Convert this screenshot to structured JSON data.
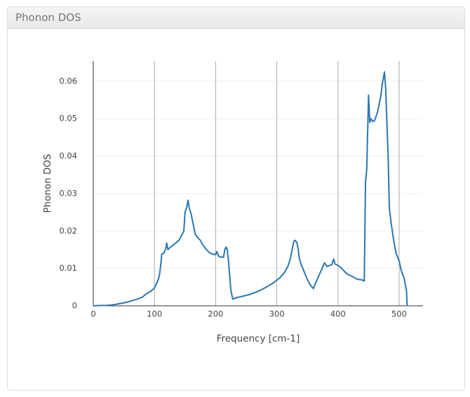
{
  "panel": {
    "title": "Phonon DOS"
  },
  "chart_data": {
    "type": "line",
    "x_label": "Frequency [cm-1]",
    "y_label": "Phonon DOS",
    "xlim": [
      0,
      539
    ],
    "ylim": [
      0,
      0.0654
    ],
    "xticks": [
      0,
      100,
      200,
      300,
      400,
      500
    ],
    "yticks": [
      0,
      0.01,
      0.02,
      0.03,
      0.04,
      0.05,
      0.06
    ],
    "grid": true,
    "series": [
      {
        "color": "#2a77b0",
        "x": [
          0,
          10,
          20,
          30,
          40,
          50,
          60,
          70,
          80,
          85,
          90,
          95,
          100,
          105,
          108,
          110,
          112,
          115,
          118,
          120,
          122,
          125,
          130,
          135,
          140,
          145,
          148,
          150,
          153,
          155,
          157,
          160,
          163,
          167,
          172,
          175,
          178,
          185,
          190,
          195,
          200,
          202,
          205,
          210,
          213,
          215,
          217,
          219,
          221,
          223,
          225,
          228,
          235,
          245,
          255,
          265,
          275,
          285,
          295,
          305,
          312,
          318,
          322,
          325,
          328,
          330,
          333,
          335,
          337,
          340,
          345,
          350,
          355,
          360,
          363,
          366,
          370,
          374,
          378,
          382,
          387,
          390,
          393,
          395,
          400,
          405,
          410,
          415,
          420,
          425,
          430,
          435,
          440,
          443,
          445,
          447,
          450,
          452,
          454,
          457,
          460,
          465,
          470,
          473,
          476,
          478,
          482,
          484,
          487,
          492,
          495,
          500,
          503,
          506,
          508,
          510,
          512,
          513
        ],
        "values": [
          0,
          0.0001,
          0.0001,
          0.0002,
          0.0005,
          0.0008,
          0.0012,
          0.0017,
          0.0023,
          0.003,
          0.0035,
          0.004,
          0.0048,
          0.0065,
          0.008,
          0.0105,
          0.0138,
          0.014,
          0.015,
          0.0168,
          0.015,
          0.0155,
          0.0162,
          0.0168,
          0.0175,
          0.019,
          0.02,
          0.025,
          0.0265,
          0.0282,
          0.026,
          0.0245,
          0.022,
          0.019,
          0.018,
          0.0175,
          0.0165,
          0.015,
          0.0142,
          0.0138,
          0.0137,
          0.0145,
          0.0132,
          0.013,
          0.013,
          0.015,
          0.0157,
          0.015,
          0.012,
          0.008,
          0.004,
          0.0018,
          0.0022,
          0.0026,
          0.003,
          0.0036,
          0.0043,
          0.0052,
          0.0062,
          0.0075,
          0.0088,
          0.0105,
          0.0125,
          0.015,
          0.0173,
          0.0175,
          0.0168,
          0.015,
          0.0125,
          0.011,
          0.009,
          0.007,
          0.0055,
          0.0046,
          0.006,
          0.007,
          0.0085,
          0.01,
          0.0115,
          0.0105,
          0.0108,
          0.011,
          0.0125,
          0.0112,
          0.0108,
          0.0102,
          0.0093,
          0.0085,
          0.0081,
          0.0077,
          0.0072,
          0.007,
          0.0069,
          0.0066,
          0.033,
          0.0365,
          0.0563,
          0.049,
          0.05,
          0.0492,
          0.0495,
          0.052,
          0.056,
          0.0598,
          0.0625,
          0.058,
          0.04,
          0.026,
          0.022,
          0.0165,
          0.014,
          0.012,
          0.0098,
          0.0082,
          0.0075,
          0.0058,
          0.004,
          0
        ]
      }
    ]
  }
}
